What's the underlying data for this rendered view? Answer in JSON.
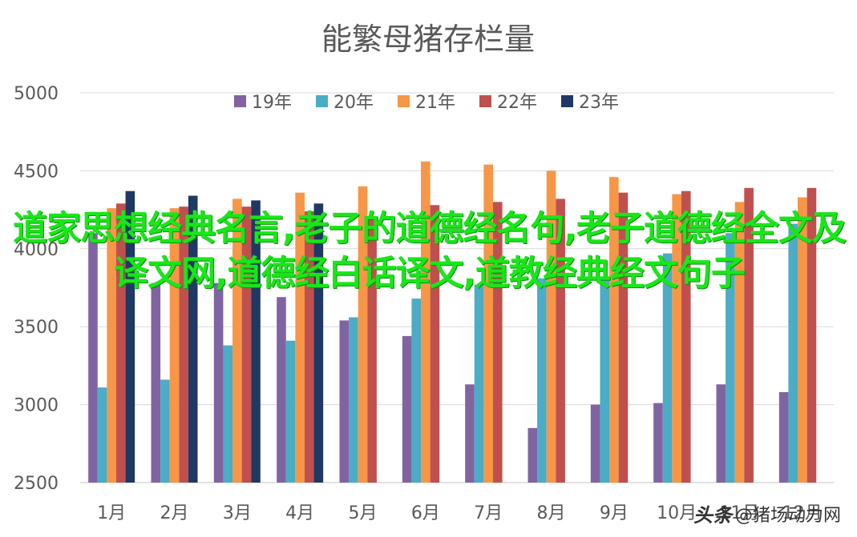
{
  "chart_data": {
    "type": "bar",
    "title": "能繁母猪存栏量",
    "xlabel": "",
    "ylabel": "",
    "categories": [
      "1月",
      "2月",
      "3月",
      "4月",
      "5月",
      "6月",
      "7月",
      "8月",
      "9月",
      "10月",
      "11月",
      "12月"
    ],
    "series": [
      {
        "name": "19年",
        "color": "#8064a2",
        "values": [
          4100,
          3780,
          3780,
          3690,
          3540,
          3440,
          3130,
          2850,
          3000,
          3010,
          3130,
          3080
        ]
      },
      {
        "name": "20年",
        "color": "#4bacc6",
        "values": [
          3110,
          3160,
          3380,
          3410,
          3560,
          3680,
          3770,
          3810,
          3820,
          3970,
          4100,
          4160
        ]
      },
      {
        "name": "21年",
        "color": "#f79646",
        "values": [
          4260,
          4260,
          4320,
          4360,
          4400,
          4560,
          4540,
          4500,
          4460,
          4350,
          4300,
          4330
        ]
      },
      {
        "name": "22年",
        "color": "#c0504d",
        "values": [
          4290,
          4270,
          4270,
          4240,
          4190,
          4280,
          4300,
          4320,
          4360,
          4370,
          4390,
          4390
        ]
      },
      {
        "name": "23年",
        "color": "#1f3864",
        "values": [
          4370,
          4340,
          4310,
          4290,
          null,
          null,
          null,
          null,
          null,
          null,
          null,
          null
        ]
      }
    ],
    "ylim": [
      2500,
      5000
    ],
    "yticks": [
      2500,
      3000,
      3500,
      4000,
      4500,
      5000
    ],
    "grid": true,
    "legend": "top-center"
  },
  "overlay": {
    "text": "道家思想经典名言,老子的道德经名句,老子道德经全文及译文网,道德经白话译文,道教经典经文句子"
  },
  "watermark": {
    "prefix": "头条",
    "handle": "@猪场动力网"
  }
}
